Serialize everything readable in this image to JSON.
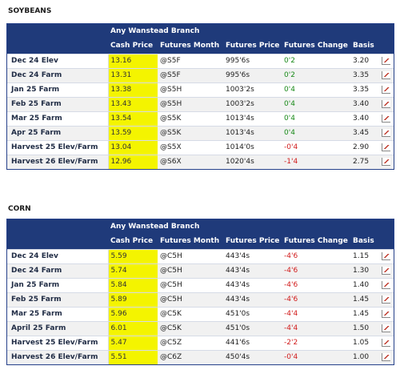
{
  "sections": [
    {
      "title": "SOYBEANS",
      "branch": "Any Wanstead Branch",
      "columns": [
        "Cash Price",
        "Futures Month",
        "Futures Price",
        "Futures Change",
        "Basis"
      ],
      "rows": [
        {
          "name": "Dec 24 Elev",
          "cash": "13.16",
          "month": "@S5F",
          "fprice": "995'6s",
          "change": "0'2",
          "dir": "up",
          "basis": "3.20"
        },
        {
          "name": "Dec 24 Farm",
          "cash": "13.31",
          "month": "@S5F",
          "fprice": "995'6s",
          "change": "0'2",
          "dir": "up",
          "basis": "3.35"
        },
        {
          "name": "Jan 25 Farm",
          "cash": "13.38",
          "month": "@S5H",
          "fprice": "1003'2s",
          "change": "0'4",
          "dir": "up",
          "basis": "3.35"
        },
        {
          "name": "Feb 25 Farm",
          "cash": "13.43",
          "month": "@S5H",
          "fprice": "1003'2s",
          "change": "0'4",
          "dir": "up",
          "basis": "3.40"
        },
        {
          "name": "Mar 25 Farm",
          "cash": "13.54",
          "month": "@S5K",
          "fprice": "1013'4s",
          "change": "0'4",
          "dir": "up",
          "basis": "3.40"
        },
        {
          "name": "Apr 25 Farm",
          "cash": "13.59",
          "month": "@S5K",
          "fprice": "1013'4s",
          "change": "0'4",
          "dir": "up",
          "basis": "3.45"
        },
        {
          "name": "Harvest 25 Elev/Farm",
          "cash": "13.04",
          "month": "@S5X",
          "fprice": "1014'0s",
          "change": "-0'4",
          "dir": "down",
          "basis": "2.90"
        },
        {
          "name": "Harvest 26 Elev/Farm",
          "cash": "12.96",
          "month": "@S6X",
          "fprice": "1020'4s",
          "change": "-1'4",
          "dir": "down",
          "basis": "2.75"
        }
      ]
    },
    {
      "title": "CORN",
      "branch": "Any Wanstead Branch",
      "columns": [
        "Cash Price",
        "Futures Month",
        "Futures Price",
        "Futures Change",
        "Basis"
      ],
      "rows": [
        {
          "name": "Dec 24 Elev",
          "cash": "5.59",
          "month": "@C5H",
          "fprice": "443'4s",
          "change": "-4'6",
          "dir": "down",
          "basis": "1.15"
        },
        {
          "name": "Dec 24 Farm",
          "cash": "5.74",
          "month": "@C5H",
          "fprice": "443'4s",
          "change": "-4'6",
          "dir": "down",
          "basis": "1.30"
        },
        {
          "name": "Jan 25 Farm",
          "cash": "5.84",
          "month": "@C5H",
          "fprice": "443'4s",
          "change": "-4'6",
          "dir": "down",
          "basis": "1.40"
        },
        {
          "name": "Feb 25 Farm",
          "cash": "5.89",
          "month": "@C5H",
          "fprice": "443'4s",
          "change": "-4'6",
          "dir": "down",
          "basis": "1.45"
        },
        {
          "name": "Mar 25 Farm",
          "cash": "5.96",
          "month": "@C5K",
          "fprice": "451'0s",
          "change": "-4'4",
          "dir": "down",
          "basis": "1.45"
        },
        {
          "name": "April 25 Farm",
          "cash": "6.01",
          "month": "@C5K",
          "fprice": "451'0s",
          "change": "-4'4",
          "dir": "down",
          "basis": "1.50"
        },
        {
          "name": "Harvest 25 Elev/Farm",
          "cash": "5.47",
          "month": "@C5Z",
          "fprice": "441'6s",
          "change": "-2'2",
          "dir": "down",
          "basis": "1.05"
        },
        {
          "name": "Harvest 26 Elev/Farm",
          "cash": "5.51",
          "month": "@C6Z",
          "fprice": "450'4s",
          "change": "-0'4",
          "dir": "down",
          "basis": "1.00"
        }
      ]
    }
  ],
  "icon": "chart-icon",
  "colors": {
    "header": "#1f3a7a",
    "cash_highlight": "#f4f400",
    "up": "#1a8a1a",
    "down": "#d11a1a"
  }
}
